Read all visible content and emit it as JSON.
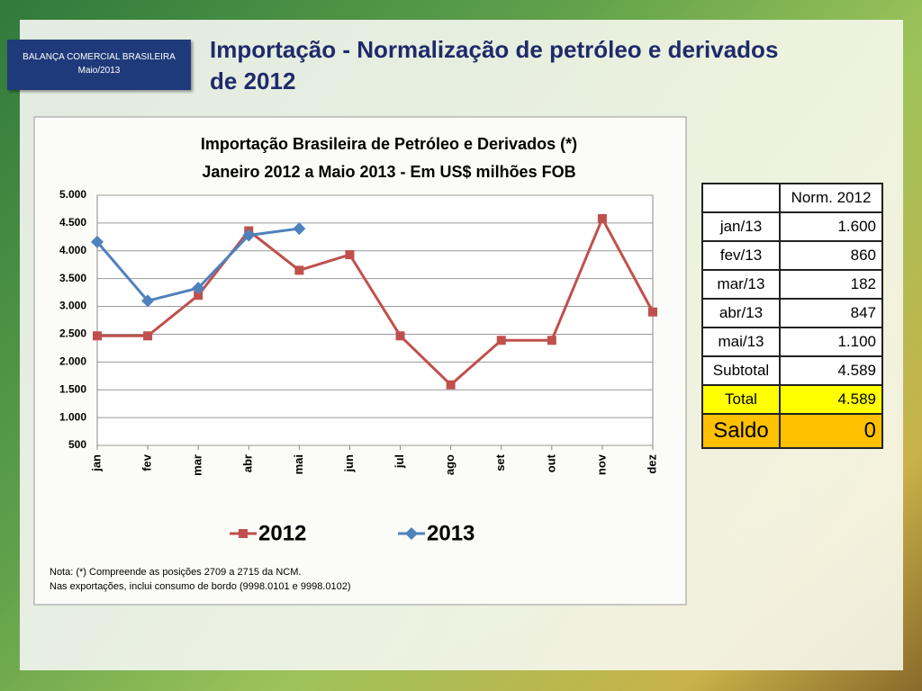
{
  "header": {
    "box_title": "BALANÇA COMERCIAL BRASILEIRA",
    "box_subtitle": "Maio/2013",
    "title_line1": "Importação - Normalização de petróleo e derivados",
    "title_line2": "de 2012"
  },
  "chart_data": {
    "type": "line",
    "title": "Importação Brasileira de Petróleo e Derivados (*)",
    "subtitle": "Janeiro 2012 a Maio 2013  -  Em US$ milhões FOB",
    "categories": [
      "jan",
      "fev",
      "mar",
      "abr",
      "mai",
      "jun",
      "jul",
      "ago",
      "set",
      "out",
      "nov",
      "dez"
    ],
    "series": [
      {
        "name": "2012",
        "color": "#c0504d",
        "marker": "square",
        "values": [
          2470,
          2470,
          3200,
          4360,
          3650,
          3930,
          2470,
          1590,
          2390,
          2390,
          4580,
          2900
        ]
      },
      {
        "name": "2013",
        "color": "#4f81bd",
        "marker": "diamond",
        "values": [
          4160,
          3100,
          3330,
          4280,
          4400,
          null,
          null,
          null,
          null,
          null,
          null,
          null
        ]
      }
    ],
    "ylim": [
      500,
      5000
    ],
    "yticks": [
      {
        "value": 500,
        "label": "500"
      },
      {
        "value": 1000,
        "label": "1.000"
      },
      {
        "value": 1500,
        "label": "1.500"
      },
      {
        "value": 2000,
        "label": "2.000"
      },
      {
        "value": 2500,
        "label": "2.500"
      },
      {
        "value": 3000,
        "label": "3.000"
      },
      {
        "value": 3500,
        "label": "3.500"
      },
      {
        "value": 4000,
        "label": "4.000"
      },
      {
        "value": 4500,
        "label": "4.500"
      },
      {
        "value": 5000,
        "label": "5.000"
      }
    ],
    "grid": true,
    "legend": "bottom"
  },
  "note": {
    "line1": "Nota: (*) Compreende as posições 2709 a 2715 da NCM.",
    "line2": "Nas exportações, inclui consumo de bordo (9998.0101 e 9998.0102)"
  },
  "table": {
    "column_header": "Norm. 2012",
    "rows": [
      [
        "jan/13",
        "1.600"
      ],
      [
        "fev/13",
        "860"
      ],
      [
        "mar/13",
        "182"
      ],
      [
        "abr/13",
        "847"
      ],
      [
        "mai/13",
        "1.100"
      ],
      [
        "Subtotal",
        "4.589"
      ],
      [
        "Total",
        "4.589"
      ],
      [
        "Saldo",
        "0"
      ]
    ]
  }
}
